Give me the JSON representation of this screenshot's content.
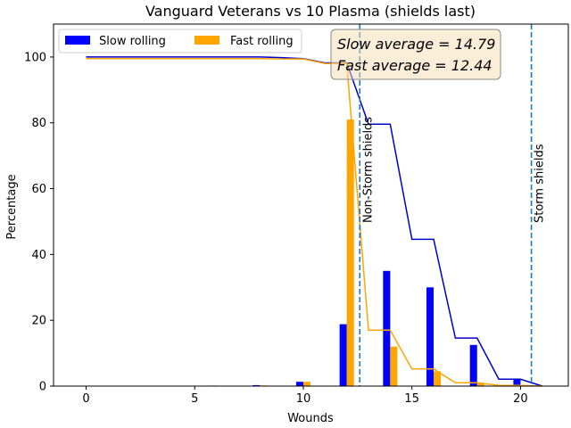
{
  "chart_data": {
    "type": "bar",
    "title": "Vanguard Veterans vs 10 Plasma (shields last)",
    "xlabel": "Wounds",
    "ylabel": "Percentage",
    "xlim": [
      -1.5,
      22.2
    ],
    "ylim": [
      0,
      110
    ],
    "xticks": [
      0,
      5,
      10,
      15,
      20
    ],
    "yticks": [
      0,
      20,
      40,
      60,
      80,
      100
    ],
    "grid": false,
    "legend": {
      "placement": "top-left",
      "columns": 2
    },
    "series": [
      {
        "name": "Slow rolling",
        "kind": "bar",
        "color": "#0000ff",
        "x": [
          0,
          2,
          4,
          6,
          8,
          10,
          12,
          14,
          16,
          18,
          20
        ],
        "values": [
          0,
          0,
          0,
          0.15,
          0.3,
          1.3,
          18.8,
          35.0,
          30.0,
          12.5,
          2.0
        ]
      },
      {
        "name": "Fast rolling",
        "kind": "bar",
        "color": "#ffa500",
        "x": [
          0,
          2,
          4,
          6,
          8,
          10,
          12,
          14,
          16,
          18,
          20
        ],
        "values": [
          0,
          0,
          0,
          0.1,
          0.2,
          1.3,
          81.0,
          12.0,
          4.5,
          1.0,
          0.2
        ]
      },
      {
        "kind": "line",
        "color": "#0000cc",
        "x": [
          0,
          1,
          2,
          3,
          4,
          5,
          6,
          7,
          8,
          9,
          10,
          11,
          12,
          13,
          14,
          15,
          16,
          17,
          18,
          19,
          20,
          21
        ],
        "values": [
          100,
          100,
          100,
          100,
          100,
          100,
          100,
          100,
          100,
          99.8,
          99.5,
          98.2,
          98.2,
          79.6,
          79.6,
          44.6,
          44.6,
          14.6,
          14.6,
          2.1,
          2.1,
          0
        ]
      },
      {
        "kind": "line",
        "color": "#ffa500",
        "x": [
          0,
          1,
          2,
          3,
          4,
          5,
          6,
          7,
          8,
          9,
          10,
          11,
          12,
          13,
          14,
          15,
          16,
          17,
          18,
          19,
          20,
          21
        ],
        "values": [
          99.5,
          99.5,
          99.5,
          99.5,
          99.5,
          99.5,
          99.5,
          99.5,
          99.5,
          99.4,
          99.4,
          98.0,
          98.0,
          17.0,
          17.0,
          5.2,
          5.2,
          1.0,
          1.0,
          0.2,
          0.2,
          0
        ]
      }
    ],
    "vlines": [
      {
        "x": 12.6,
        "label": "Non-Storm shields",
        "color": "#1f77b4",
        "style": "dashed"
      },
      {
        "x": 20.5,
        "label": "Storm shields",
        "color": "#1f77b4",
        "style": "dashed"
      }
    ],
    "annotation": {
      "lines": [
        "Slow average = 14.79",
        "Fast average = 12.44"
      ],
      "placement": "top-right",
      "box_fill": "#f5deb3",
      "box_edge": "#888888"
    }
  }
}
